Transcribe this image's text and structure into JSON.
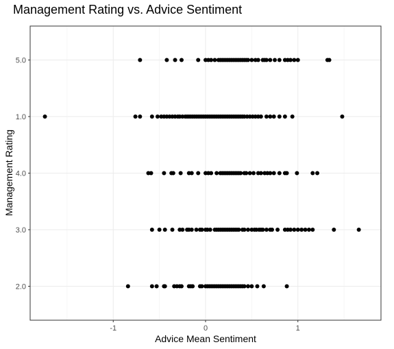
{
  "chart_data": {
    "type": "scatter",
    "title": "Management Rating vs. Advice Sentiment",
    "xlabel": "Advice Mean Sentiment",
    "ylabel": "Management Rating",
    "xlim": [
      -1.9,
      1.9
    ],
    "x_ticks": [
      -1,
      0,
      1
    ],
    "x_tick_labels": [
      "-1",
      "0",
      "1"
    ],
    "categories": [
      "2.0",
      "3.0",
      "4.0",
      "1.0",
      "5.0"
    ],
    "grid": true,
    "points": [
      {
        "category": "5.0",
        "x": [
          -0.71,
          -0.42,
          -0.33,
          -0.26,
          -0.08,
          0.0,
          0.03,
          0.06,
          0.1,
          0.14,
          0.16,
          0.18,
          0.2,
          0.22,
          0.24,
          0.26,
          0.28,
          0.3,
          0.32,
          0.34,
          0.36,
          0.38,
          0.4,
          0.42,
          0.44,
          0.46,
          0.5,
          0.54,
          0.57,
          0.62,
          0.64,
          0.66,
          0.7,
          0.75,
          0.8,
          0.86,
          0.89,
          0.92,
          0.96,
          1.0,
          1.32,
          1.34
        ]
      },
      {
        "category": "1.0",
        "x": [
          -1.74,
          -0.76,
          -0.71,
          -0.58,
          -0.52,
          -0.48,
          -0.45,
          -0.42,
          -0.39,
          -0.36,
          -0.33,
          -0.3,
          -0.28,
          -0.25,
          -0.22,
          -0.2,
          -0.18,
          -0.16,
          -0.14,
          -0.12,
          -0.1,
          -0.08,
          -0.06,
          -0.04,
          -0.02,
          0.0,
          0.02,
          0.04,
          0.06,
          0.08,
          0.1,
          0.12,
          0.14,
          0.16,
          0.18,
          0.2,
          0.22,
          0.24,
          0.26,
          0.28,
          0.3,
          0.32,
          0.34,
          0.36,
          0.38,
          0.4,
          0.42,
          0.45,
          0.48,
          0.51,
          0.54,
          0.57,
          0.6,
          0.66,
          0.7,
          0.74,
          0.8,
          0.86,
          0.94,
          1.48
        ]
      },
      {
        "category": "4.0",
        "x": [
          -0.62,
          -0.59,
          -0.45,
          -0.37,
          -0.35,
          -0.27,
          -0.18,
          -0.15,
          -0.08,
          0.0,
          0.03,
          0.06,
          0.12,
          0.16,
          0.18,
          0.2,
          0.22,
          0.24,
          0.26,
          0.28,
          0.3,
          0.32,
          0.34,
          0.36,
          0.38,
          0.42,
          0.44,
          0.48,
          0.52,
          0.57,
          0.6,
          0.64,
          0.67,
          0.7,
          0.74,
          0.8,
          0.86,
          0.88,
          0.99,
          1.16,
          1.21
        ]
      },
      {
        "category": "3.0",
        "x": [
          -0.58,
          -0.5,
          -0.44,
          -0.36,
          -0.28,
          -0.25,
          -0.2,
          -0.18,
          -0.15,
          -0.1,
          -0.06,
          -0.04,
          0.0,
          0.02,
          0.05,
          0.1,
          0.12,
          0.14,
          0.16,
          0.18,
          0.2,
          0.22,
          0.24,
          0.26,
          0.28,
          0.3,
          0.32,
          0.34,
          0.36,
          0.4,
          0.42,
          0.46,
          0.5,
          0.53,
          0.55,
          0.58,
          0.6,
          0.62,
          0.66,
          0.7,
          0.72,
          0.78,
          0.86,
          0.89,
          0.92,
          0.96,
          1.0,
          1.04,
          1.08,
          1.12,
          1.16,
          1.39,
          1.66
        ]
      },
      {
        "category": "2.0",
        "x": [
          -0.84,
          -0.58,
          -0.53,
          -0.45,
          -0.44,
          -0.34,
          -0.31,
          -0.28,
          -0.26,
          -0.18,
          -0.16,
          -0.14,
          -0.06,
          -0.04,
          0.0,
          0.02,
          0.04,
          0.06,
          0.08,
          0.1,
          0.12,
          0.14,
          0.16,
          0.18,
          0.2,
          0.22,
          0.24,
          0.26,
          0.28,
          0.3,
          0.32,
          0.34,
          0.36,
          0.38,
          0.4,
          0.42,
          0.46,
          0.5,
          0.56,
          0.63,
          0.88
        ]
      }
    ]
  }
}
